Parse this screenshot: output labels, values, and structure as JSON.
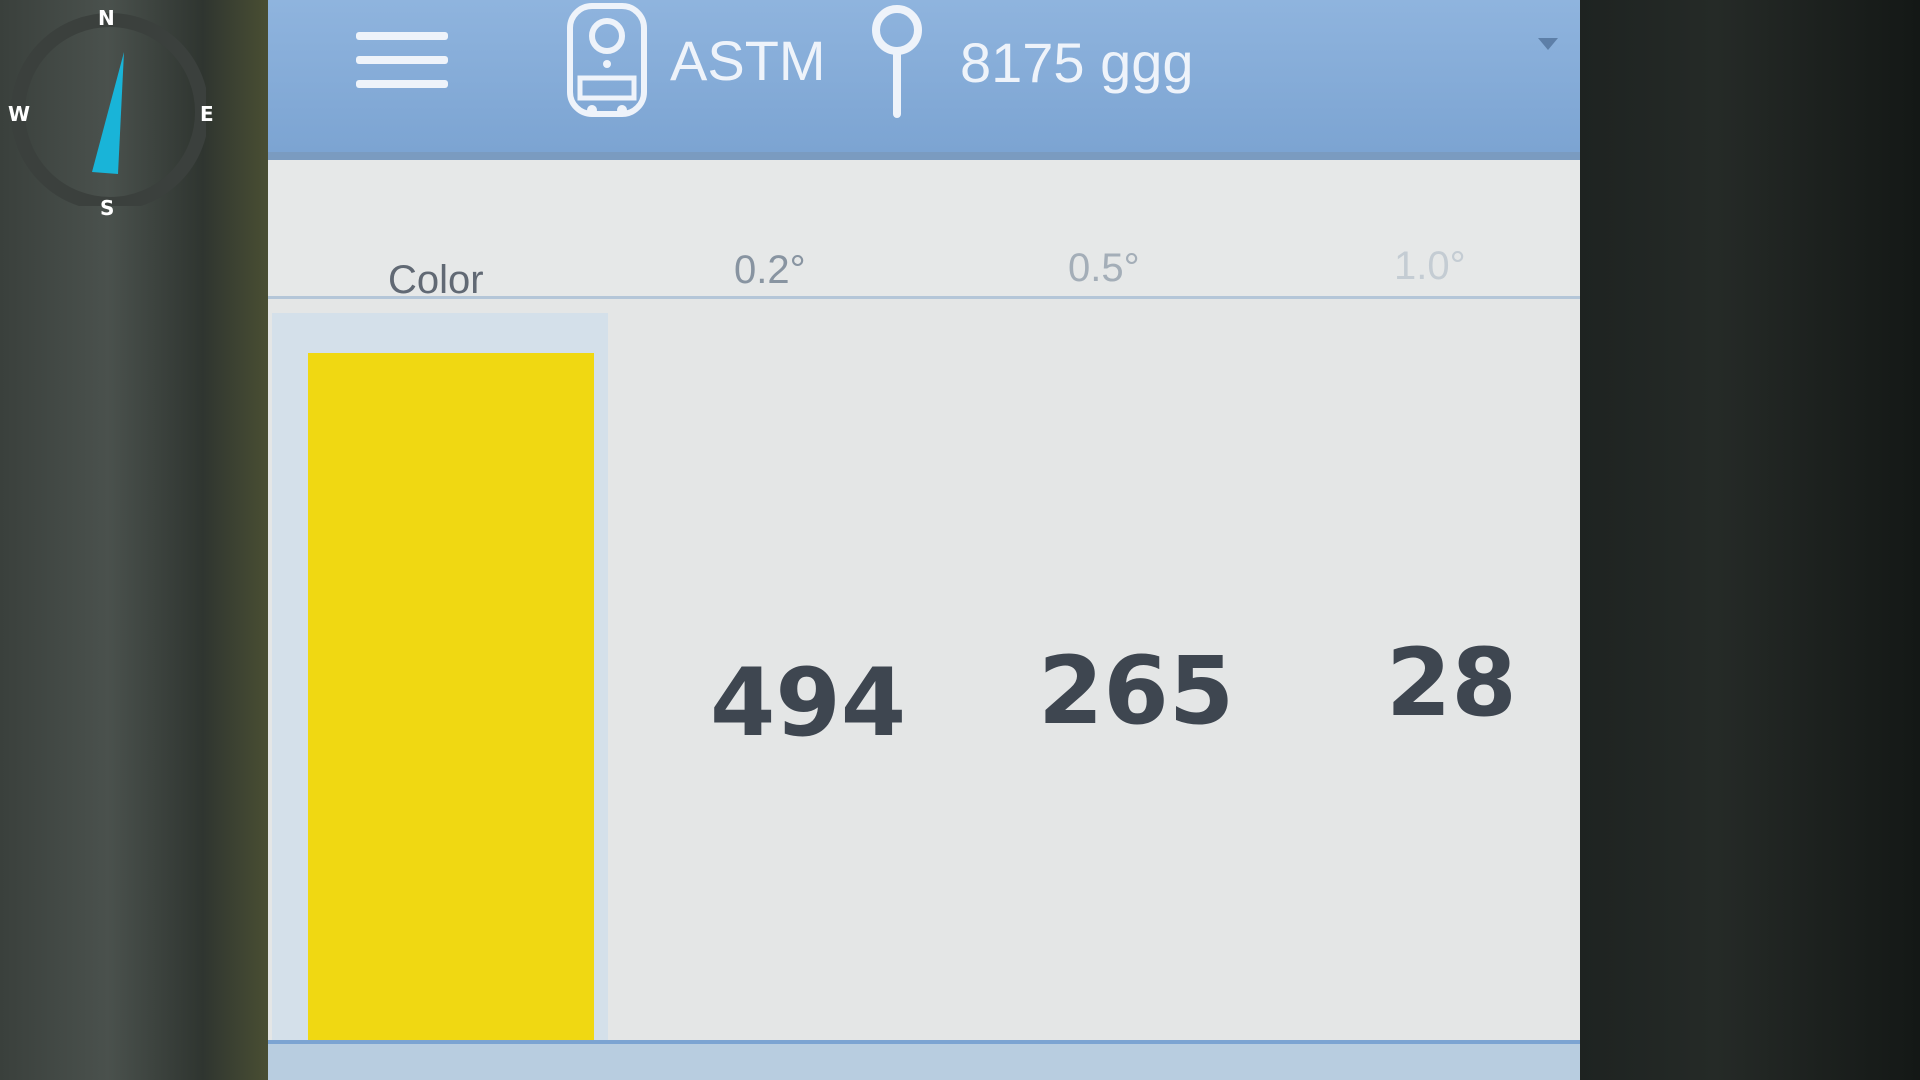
{
  "compass": {
    "north": "N",
    "south": "S",
    "west": "W",
    "east": "E",
    "needle_color": "#19b4d8"
  },
  "topbar": {
    "menu_icon": "hamburger-menu-icon",
    "device_icon": "retroreflectometer-device-icon",
    "standard": "ASTM",
    "location_icon": "map-pin-icon",
    "location": "8175 ggg",
    "background_color": "#8fb4de"
  },
  "table": {
    "headers": {
      "color": "Color",
      "angle_02": "0.2°",
      "angle_05": "0.5°",
      "angle_10": "1.0°"
    },
    "swatch_color": "#f0d812",
    "values": {
      "angle_02": "494",
      "angle_05": "265",
      "angle_10": "28"
    }
  }
}
